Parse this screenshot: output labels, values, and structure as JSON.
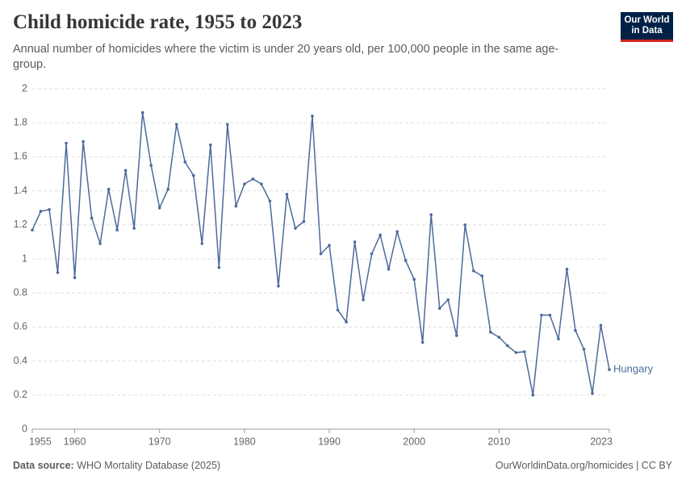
{
  "header": {
    "title": "Child homicide rate, 1955 to 2023",
    "subtitle": "Annual number of homicides where the victim is under 20 years old, per 100,000 people in the same age-group.",
    "logo": [
      "Our World",
      "in Data"
    ]
  },
  "footer": {
    "source_label": "Data source:",
    "source": "WHO Mortality Database (2025)",
    "credit": "OurWorldinData.org/homicides | CC BY"
  },
  "chart_data": {
    "type": "line",
    "x": [
      1955,
      1956,
      1957,
      1958,
      1959,
      1960,
      1961,
      1962,
      1963,
      1964,
      1965,
      1966,
      1967,
      1968,
      1969,
      1970,
      1971,
      1972,
      1973,
      1974,
      1975,
      1976,
      1977,
      1978,
      1979,
      1980,
      1981,
      1982,
      1983,
      1984,
      1985,
      1986,
      1987,
      1988,
      1989,
      1990,
      1991,
      1992,
      1993,
      1994,
      1995,
      1996,
      1997,
      1998,
      1999,
      2000,
      2001,
      2002,
      2003,
      2004,
      2005,
      2006,
      2007,
      2008,
      2009,
      2010,
      2011,
      2012,
      2013,
      2014,
      2015,
      2016,
      2017,
      2018,
      2019,
      2020,
      2021,
      2022,
      2023
    ],
    "series": [
      {
        "name": "Hungary",
        "color": "#4c6a9c",
        "values": [
          1.17,
          1.28,
          1.29,
          0.92,
          1.68,
          0.89,
          1.69,
          1.24,
          1.09,
          1.41,
          1.17,
          1.52,
          1.18,
          1.86,
          1.55,
          1.3,
          1.41,
          1.79,
          1.57,
          1.49,
          1.09,
          1.67,
          0.95,
          1.79,
          1.31,
          1.44,
          1.47,
          1.44,
          1.34,
          0.84,
          1.38,
          1.18,
          1.22,
          1.84,
          1.03,
          1.08,
          0.7,
          0.63,
          1.1,
          0.76,
          1.03,
          1.14,
          0.94,
          1.16,
          0.99,
          0.88,
          0.51,
          1.26,
          0.71,
          0.76,
          0.55,
          1.2,
          0.93,
          0.9,
          0.57,
          0.54,
          0.49,
          0.45,
          0.455,
          0.2,
          0.67,
          0.67,
          0.53,
          0.94,
          0.58,
          0.47,
          0.21,
          0.61,
          0.35
        ]
      }
    ],
    "xlim": [
      1955,
      2023
    ],
    "xticks": [
      1955,
      1960,
      1970,
      1980,
      1990,
      2000,
      2010,
      2023
    ],
    "ylim": [
      0,
      2
    ],
    "yticks": [
      0,
      0.2,
      0.4,
      0.6,
      0.8,
      1,
      1.2,
      1.4,
      1.6,
      1.8,
      2
    ],
    "grid": true
  }
}
